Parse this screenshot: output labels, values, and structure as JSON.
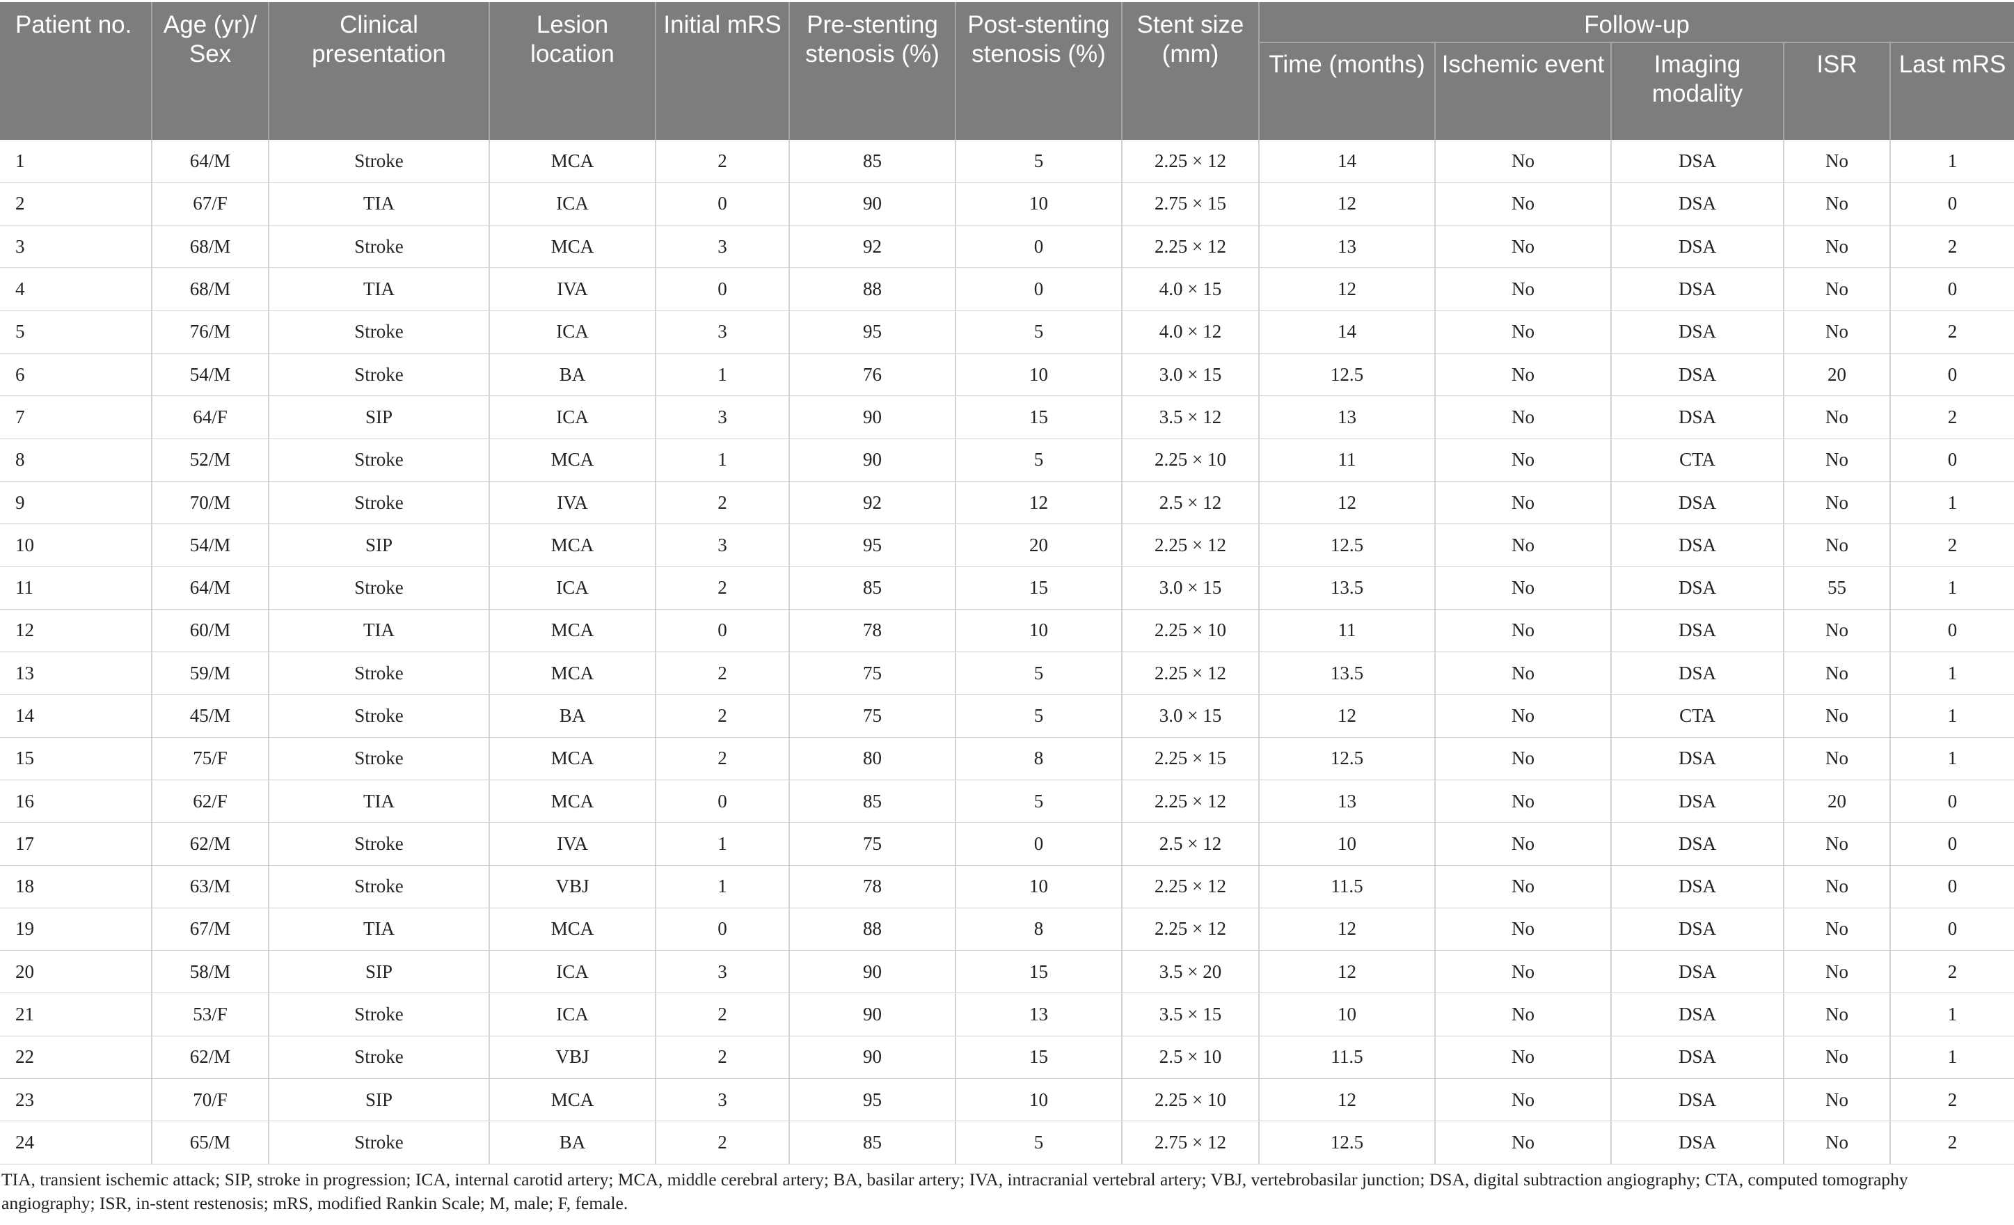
{
  "header": {
    "patient_no": "Patient no.",
    "age_sex": "Age (yr)/ Sex",
    "clinical_presentation": "Clinical presentation",
    "lesion_location": "Lesion location",
    "initial_mrs": "Initial mRS",
    "pre_stenting": "Pre-stenting stenosis (%)",
    "post_stenting": "Post-stenting stenosis (%)",
    "stent_size": "Stent size (mm)",
    "follow_up": "Follow-up",
    "time_months": "Time (months)",
    "ischemic_event": "Ischemic event",
    "imaging_modality": "Imaging modality",
    "isr": "ISR",
    "last_mrs": "Last mRS"
  },
  "rows": [
    [
      "1",
      "64/M",
      "Stroke",
      "MCA",
      "2",
      "85",
      "5",
      "2.25 × 12",
      "14",
      "No",
      "DSA",
      "No",
      "1"
    ],
    [
      "2",
      "67/F",
      "TIA",
      "ICA",
      "0",
      "90",
      "10",
      "2.75 × 15",
      "12",
      "No",
      "DSA",
      "No",
      "0"
    ],
    [
      "3",
      "68/M",
      "Stroke",
      "MCA",
      "3",
      "92",
      "0",
      "2.25 × 12",
      "13",
      "No",
      "DSA",
      "No",
      "2"
    ],
    [
      "4",
      "68/M",
      "TIA",
      "IVA",
      "0",
      "88",
      "0",
      "4.0 × 15",
      "12",
      "No",
      "DSA",
      "No",
      "0"
    ],
    [
      "5",
      "76/M",
      "Stroke",
      "ICA",
      "3",
      "95",
      "5",
      "4.0 × 12",
      "14",
      "No",
      "DSA",
      "No",
      "2"
    ],
    [
      "6",
      "54/M",
      "Stroke",
      "BA",
      "1",
      "76",
      "10",
      "3.0 × 15",
      "12.5",
      "No",
      "DSA",
      "20",
      "0"
    ],
    [
      "7",
      "64/F",
      "SIP",
      "ICA",
      "3",
      "90",
      "15",
      "3.5 × 12",
      "13",
      "No",
      "DSA",
      "No",
      "2"
    ],
    [
      "8",
      "52/M",
      "Stroke",
      "MCA",
      "1",
      "90",
      "5",
      "2.25 × 10",
      "11",
      "No",
      "CTA",
      "No",
      "0"
    ],
    [
      "9",
      "70/M",
      "Stroke",
      "IVA",
      "2",
      "92",
      "12",
      "2.5 × 12",
      "12",
      "No",
      "DSA",
      "No",
      "1"
    ],
    [
      "10",
      "54/M",
      "SIP",
      "MCA",
      "3",
      "95",
      "20",
      "2.25 × 12",
      "12.5",
      "No",
      "DSA",
      "No",
      "2"
    ],
    [
      "11",
      "64/M",
      "Stroke",
      "ICA",
      "2",
      "85",
      "15",
      "3.0 × 15",
      "13.5",
      "No",
      "DSA",
      "55",
      "1"
    ],
    [
      "12",
      "60/M",
      "TIA",
      "MCA",
      "0",
      "78",
      "10",
      "2.25 × 10",
      "11",
      "No",
      "DSA",
      "No",
      "0"
    ],
    [
      "13",
      "59/M",
      "Stroke",
      "MCA",
      "2",
      "75",
      "5",
      "2.25 × 12",
      "13.5",
      "No",
      "DSA",
      "No",
      "1"
    ],
    [
      "14",
      "45/M",
      "Stroke",
      "BA",
      "2",
      "75",
      "5",
      "3.0 × 15",
      "12",
      "No",
      "CTA",
      "No",
      "1"
    ],
    [
      "15",
      "75/F",
      "Stroke",
      "MCA",
      "2",
      "80",
      "8",
      "2.25 × 15",
      "12.5",
      "No",
      "DSA",
      "No",
      "1"
    ],
    [
      "16",
      "62/F",
      "TIA",
      "MCA",
      "0",
      "85",
      "5",
      "2.25 × 12",
      "13",
      "No",
      "DSA",
      "20",
      "0"
    ],
    [
      "17",
      "62/M",
      "Stroke",
      "IVA",
      "1",
      "75",
      "0",
      "2.5 × 12",
      "10",
      "No",
      "DSA",
      "No",
      "0"
    ],
    [
      "18",
      "63/M",
      "Stroke",
      "VBJ",
      "1",
      "78",
      "10",
      "2.25 × 12",
      "11.5",
      "No",
      "DSA",
      "No",
      "0"
    ],
    [
      "19",
      "67/M",
      "TIA",
      "MCA",
      "0",
      "88",
      "8",
      "2.25 × 12",
      "12",
      "No",
      "DSA",
      "No",
      "0"
    ],
    [
      "20",
      "58/M",
      "SIP",
      "ICA",
      "3",
      "90",
      "15",
      "3.5 × 20",
      "12",
      "No",
      "DSA",
      "No",
      "2"
    ],
    [
      "21",
      "53/F",
      "Stroke",
      "ICA",
      "2",
      "90",
      "13",
      "3.5 × 15",
      "10",
      "No",
      "DSA",
      "No",
      "1"
    ],
    [
      "22",
      "62/M",
      "Stroke",
      "VBJ",
      "2",
      "90",
      "15",
      "2.5 × 10",
      "11.5",
      "No",
      "DSA",
      "No",
      "1"
    ],
    [
      "23",
      "70/F",
      "SIP",
      "MCA",
      "3",
      "95",
      "10",
      "2.25 × 10",
      "12",
      "No",
      "DSA",
      "No",
      "2"
    ],
    [
      "24",
      "65/M",
      "Stroke",
      "BA",
      "2",
      "85",
      "5",
      "2.75 × 12",
      "12.5",
      "No",
      "DSA",
      "No",
      "2"
    ]
  ],
  "footnote": "TIA, transient ischemic attack; SIP, stroke in progression; ICA, internal carotid artery; MCA, middle cerebral artery; BA, basilar artery; IVA, intracranial vertebral artery; VBJ, vertebrobasilar junction; DSA, digital subtraction angiography; CTA, computed tomography angiography; ISR, in-stent restenosis; mRS, modified Rankin Scale; M, male; F, female."
}
